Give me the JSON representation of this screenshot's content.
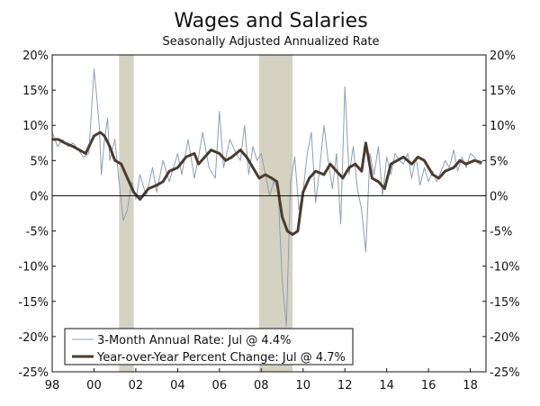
{
  "chart_data": {
    "type": "line",
    "title": "Wages and Salaries",
    "subtitle": "Seasonally Adjusted Annualized Rate",
    "xlabel": "",
    "ylabel": "",
    "x_range": [
      1998,
      2018.75
    ],
    "ylim": [
      -25,
      20
    ],
    "y_ticks": [
      20,
      15,
      10,
      5,
      0,
      -5,
      -10,
      -15,
      -20,
      -25
    ],
    "y_tick_labels": [
      "20%",
      "15%",
      "10%",
      "5%",
      "0%",
      "-5%",
      "-10%",
      "-15%",
      "-20%",
      "-25%"
    ],
    "x_ticks": [
      1998,
      2000,
      2002,
      2004,
      2006,
      2008,
      2010,
      2012,
      2014,
      2016,
      2018
    ],
    "x_tick_labels": [
      "98",
      "00",
      "02",
      "04",
      "06",
      "08",
      "10",
      "12",
      "14",
      "16",
      "18"
    ],
    "recessions": [
      [
        2001.2,
        2001.9
      ],
      [
        2007.9,
        2009.5
      ]
    ],
    "colors": {
      "three_month": "#8aa0b8",
      "yoy": "#4a3b2e",
      "recession": "#d6d2c2",
      "axis": "#111111"
    },
    "legend_position": "bottom-left",
    "series": [
      {
        "name": "3-Month Annual Rate: Jul @ 4.4%",
        "x": [
          1998.0,
          1998.25,
          1998.5,
          1998.75,
          1999.0,
          1999.25,
          1999.5,
          1999.75,
          2000.0,
          2000.1,
          2000.25,
          2000.35,
          2000.5,
          2000.65,
          2000.75,
          2001.0,
          2001.2,
          2001.4,
          2001.6,
          2001.8,
          2002.0,
          2002.2,
          2002.5,
          2002.8,
          2003.0,
          2003.3,
          2003.6,
          2004.0,
          2004.2,
          2004.5,
          2004.8,
          2005.0,
          2005.2,
          2005.5,
          2005.8,
          2006.0,
          2006.2,
          2006.5,
          2006.8,
          2007.0,
          2007.2,
          2007.4,
          2007.6,
          2007.8,
          2008.0,
          2008.2,
          2008.4,
          2008.6,
          2008.8,
          2009.0,
          2009.2,
          2009.4,
          2009.6,
          2009.8,
          2010.0,
          2010.2,
          2010.4,
          2010.6,
          2010.8,
          2011.0,
          2011.2,
          2011.4,
          2011.6,
          2011.8,
          2012.0,
          2012.2,
          2012.4,
          2012.6,
          2012.8,
          2013.0,
          2013.2,
          2013.4,
          2013.6,
          2013.8,
          2014.0,
          2014.2,
          2014.4,
          2014.6,
          2014.8,
          2015.0,
          2015.2,
          2015.4,
          2015.6,
          2015.8,
          2016.0,
          2016.2,
          2016.4,
          2016.6,
          2016.8,
          2017.0,
          2017.2,
          2017.4,
          2017.6,
          2017.8,
          2018.0,
          2018.2,
          2018.4,
          2018.55
        ],
        "values": [
          9.0,
          7.0,
          8.0,
          7.0,
          7.5,
          6.5,
          5.5,
          6.0,
          18.0,
          15.0,
          10.0,
          3.0,
          8.0,
          11.0,
          5.0,
          8.0,
          2.0,
          -3.5,
          -2.0,
          2.0,
          -0.5,
          3.0,
          0.0,
          4.0,
          0.5,
          5.0,
          2.0,
          6.0,
          3.0,
          8.0,
          2.5,
          5.5,
          9.0,
          4.0,
          2.5,
          12.0,
          4.0,
          8.0,
          6.0,
          5.0,
          10.0,
          3.0,
          7.0,
          5.0,
          6.0,
          3.0,
          0.0,
          2.0,
          1.0,
          -12.0,
          -18.5,
          2.0,
          5.5,
          -2.0,
          0.5,
          6.0,
          9.0,
          -1.0,
          4.0,
          10.0,
          5.0,
          1.0,
          6.0,
          -4.0,
          15.5,
          3.0,
          7.0,
          1.0,
          -2.0,
          -8.0,
          6.0,
          3.0,
          7.0,
          0.0,
          5.5,
          3.0,
          6.0,
          5.0,
          4.5,
          6.0,
          2.5,
          5.5,
          1.5,
          4.0,
          2.0,
          3.5,
          2.0,
          3.5,
          5.0,
          4.0,
          6.5,
          3.5,
          5.5,
          4.0,
          6.0,
          5.5,
          4.5,
          4.4
        ]
      },
      {
        "name": "Year-over-Year Percent Change: Jul @ 4.7%",
        "x": [
          1998.0,
          1998.3,
          1998.6,
          1999.0,
          1999.3,
          1999.6,
          2000.0,
          2000.3,
          2000.5,
          2000.75,
          2001.0,
          2001.3,
          2001.6,
          2001.9,
          2002.2,
          2002.6,
          2003.0,
          2003.3,
          2003.6,
          2004.0,
          2004.4,
          2004.8,
          2005.0,
          2005.3,
          2005.6,
          2006.0,
          2006.3,
          2006.6,
          2007.0,
          2007.3,
          2007.6,
          2007.9,
          2008.2,
          2008.5,
          2008.75,
          2009.0,
          2009.25,
          2009.5,
          2009.75,
          2010.0,
          2010.3,
          2010.6,
          2011.0,
          2011.3,
          2011.6,
          2011.9,
          2012.2,
          2012.5,
          2012.8,
          2013.0,
          2013.3,
          2013.6,
          2013.9,
          2014.2,
          2014.5,
          2014.8,
          2015.2,
          2015.5,
          2015.8,
          2016.2,
          2016.5,
          2016.8,
          2017.2,
          2017.5,
          2017.8,
          2018.2,
          2018.55
        ],
        "values": [
          8.0,
          8.0,
          7.5,
          7.0,
          6.5,
          6.0,
          8.5,
          9.0,
          8.5,
          7.0,
          5.0,
          4.5,
          2.5,
          0.5,
          -0.5,
          1.0,
          1.5,
          2.0,
          3.5,
          4.0,
          5.5,
          6.0,
          4.5,
          5.5,
          6.5,
          6.0,
          5.0,
          5.5,
          6.5,
          5.5,
          4.0,
          2.5,
          3.0,
          2.5,
          2.0,
          -3.0,
          -5.0,
          -5.5,
          -5.0,
          0.5,
          2.5,
          3.5,
          3.0,
          4.5,
          3.5,
          2.5,
          4.0,
          4.5,
          3.5,
          7.5,
          2.5,
          2.0,
          1.0,
          4.5,
          5.0,
          5.5,
          4.5,
          5.5,
          5.0,
          3.0,
          2.5,
          3.5,
          4.0,
          5.0,
          4.5,
          5.0,
          4.7
        ]
      }
    ]
  }
}
